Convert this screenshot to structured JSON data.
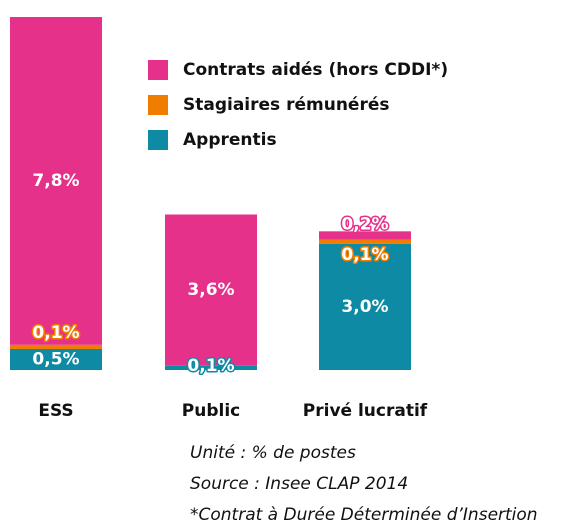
{
  "chart_data": {
    "type": "stacked_bar",
    "categories": [
      "ESS",
      "Public",
      "Privé lucratif"
    ],
    "series": [
      {
        "name": "Contrats aidés (hors CDDI*)",
        "color": "#e5318a",
        "values": [
          7.8,
          3.6,
          0.2
        ],
        "value_labels": [
          "7,8%",
          "3,6%",
          "0,2%"
        ]
      },
      {
        "name": "Stagiaires rémunérés",
        "color": "#f07d00",
        "values": [
          0.1,
          0,
          0.1
        ],
        "value_labels": [
          "0,1%",
          null,
          "0,1%"
        ]
      },
      {
        "name": "Apprentis",
        "color": "#0e8aa5",
        "values": [
          0.5,
          0.1,
          3.0
        ],
        "value_labels": [
          "0,5%",
          "0,1%",
          "3,0%"
        ]
      }
    ],
    "ylim": [
      0,
      8.4
    ],
    "legend": "top-right",
    "notes": [
      "Unité : % de postes",
      "Source : Insee CLAP 2014",
      "*Contrat à Durée Déterminée d’Insertion"
    ]
  }
}
